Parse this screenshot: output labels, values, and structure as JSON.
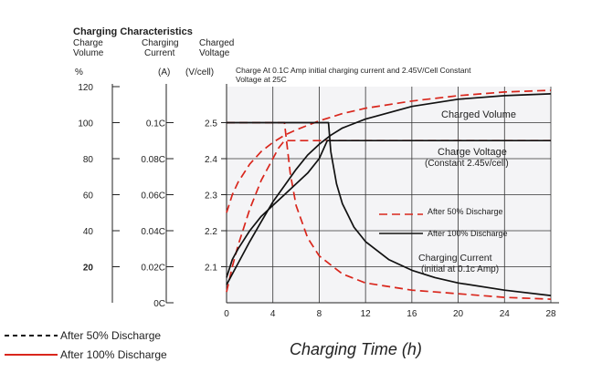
{
  "chart_data": {
    "type": "line",
    "title": "Charging Characteristics",
    "headers": {
      "charge_volume": [
        "Charge",
        "Volume"
      ],
      "charging_current": [
        "Charging",
        "Current"
      ],
      "charged_voltage": [
        "Charged",
        "Voltage"
      ]
    },
    "units": {
      "charge_volume": "%",
      "charging_current": "(A)",
      "charged_voltage": "(V/cell)"
    },
    "note": [
      "Charge At 0.1C Amp initial charging current  and 2.45V/Cell Constant",
      "Voltage  at 25C"
    ],
    "xlabel": "Charging Time (h)",
    "xlim": [
      0,
      28
    ],
    "x_ticks": [
      "0",
      "4",
      "8",
      "12",
      "16",
      "20",
      "24",
      "28"
    ],
    "volume_axis": {
      "ylim": [
        0,
        120
      ],
      "ticks": [
        "120",
        "100",
        "80",
        "60",
        "40",
        "20"
      ],
      "tick_values": [
        120,
        100,
        80,
        60,
        40,
        20
      ]
    },
    "current_axis": {
      "ticks": [
        "0.1C",
        "0.08C",
        "0.06C",
        "0.04C",
        "0.02C",
        "0C"
      ],
      "tick_values": [
        0.1,
        0.08,
        0.06,
        0.04,
        0.02,
        0
      ]
    },
    "voltage_axis": {
      "ylim": [
        2.0,
        2.6
      ],
      "ticks": [
        "2.5",
        "2.4",
        "2.3",
        "2.2",
        "2.1"
      ],
      "tick_values": [
        2.5,
        2.4,
        2.3,
        2.2,
        2.1
      ]
    },
    "annotations": {
      "charged_volume": "Charged Volume",
      "charge_voltage": [
        "Charge Voltage",
        "(Constant 2.45v/cell)"
      ],
      "charging_current": [
        "Charging Current",
        "(initial at 0.1c Amp)"
      ]
    },
    "legend_inner": [
      "After 50% Discharge",
      "After 100% Discharge"
    ],
    "legend_outer": [
      "After 50% Discharge",
      "After 100% Discharge"
    ],
    "grid": true,
    "series": [
      {
        "name": "After 50% Discharge",
        "style": "dashed",
        "color": "#d9261c",
        "quantity": "charge_volume",
        "axis": "volume",
        "x": [
          0,
          0.5,
          1,
          2,
          3,
          4,
          5,
          6,
          8,
          10,
          12,
          16,
          20,
          24,
          28
        ],
        "y": [
          50,
          60,
          67,
          77,
          84,
          89,
          93,
          96,
          101,
          105,
          108,
          112,
          115,
          117,
          118
        ]
      },
      {
        "name": "After 50% Discharge",
        "style": "dashed",
        "color": "#d9261c",
        "quantity": "charge_voltage",
        "axis": "voltage",
        "x": [
          0,
          0.5,
          1,
          2,
          3,
          4,
          4.5,
          5,
          28
        ],
        "y": [
          2.03,
          2.1,
          2.16,
          2.26,
          2.34,
          2.4,
          2.43,
          2.45,
          2.45
        ]
      },
      {
        "name": "After 50% Discharge",
        "style": "dashed",
        "color": "#d9261c",
        "quantity": "charging_current",
        "axis": "current",
        "x": [
          0,
          5,
          5.5,
          6,
          7,
          8,
          10,
          12,
          16,
          20,
          24,
          28
        ],
        "y": [
          0.1,
          0.1,
          0.072,
          0.054,
          0.036,
          0.026,
          0.016,
          0.011,
          0.007,
          0.005,
          0.003,
          0.002
        ]
      },
      {
        "name": "After 100% Discharge",
        "style": "solid",
        "color": "#111111",
        "quantity": "charge_volume",
        "axis": "volume",
        "x": [
          0,
          1,
          2,
          3,
          4,
          5,
          6,
          7,
          8,
          9,
          10,
          12,
          16,
          20,
          24,
          28
        ],
        "y": [
          10,
          22,
          34,
          45,
          56,
          65,
          74,
          82,
          88,
          93,
          97,
          102,
          109,
          113,
          115,
          116
        ]
      },
      {
        "name": "After 100% Discharge",
        "style": "solid",
        "color": "#111111",
        "quantity": "charge_voltage",
        "axis": "voltage",
        "x": [
          0,
          0.5,
          1,
          2,
          3,
          4,
          5,
          6,
          7,
          8,
          8.7,
          9,
          28
        ],
        "y": [
          2.07,
          2.12,
          2.15,
          2.2,
          2.24,
          2.27,
          2.3,
          2.33,
          2.36,
          2.4,
          2.45,
          2.45,
          2.45
        ]
      },
      {
        "name": "After 100% Discharge",
        "style": "solid",
        "color": "#111111",
        "quantity": "charging_current",
        "axis": "current",
        "x": [
          0,
          8.8,
          9,
          9.5,
          10,
          11,
          12,
          14,
          16,
          18,
          20,
          24,
          28
        ],
        "y": [
          0.1,
          0.1,
          0.084,
          0.066,
          0.055,
          0.042,
          0.034,
          0.024,
          0.018,
          0.014,
          0.011,
          0.007,
          0.004
        ]
      }
    ]
  }
}
